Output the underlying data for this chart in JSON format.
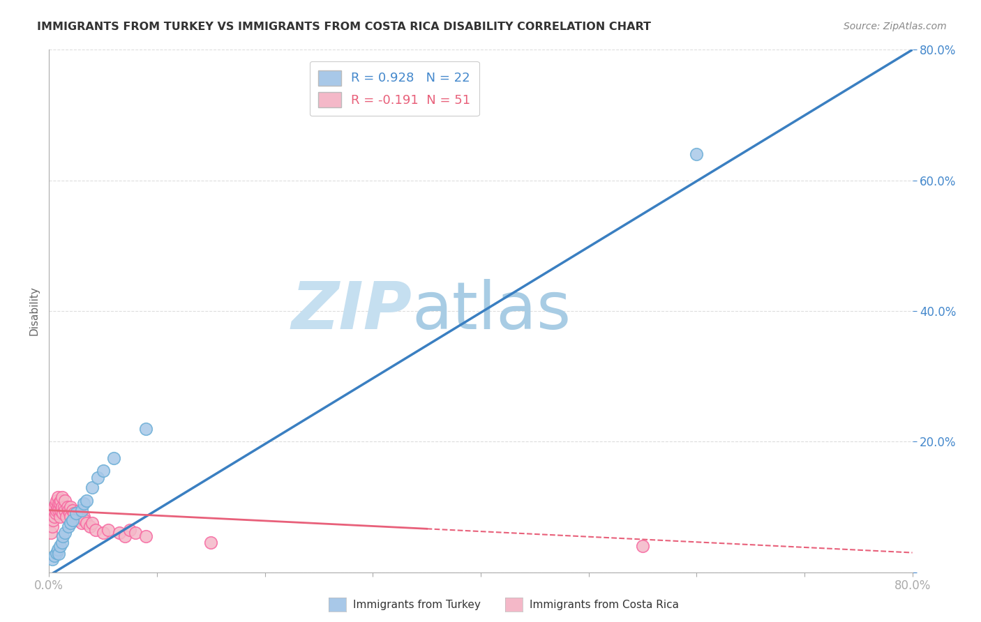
{
  "title": "IMMIGRANTS FROM TURKEY VS IMMIGRANTS FROM COSTA RICA DISABILITY CORRELATION CHART",
  "source": "Source: ZipAtlas.com",
  "ylabel": "Disability",
  "xlim": [
    0,
    0.8
  ],
  "ylim": [
    0,
    0.8
  ],
  "turkey_color": "#a8c8e8",
  "turkey_edge_color": "#6baed6",
  "costa_rica_color": "#f4b8c8",
  "costa_rica_edge_color": "#f768a1",
  "turkey_line_color": "#3a7fc1",
  "costa_rica_line_color": "#e8607a",
  "R_turkey": 0.928,
  "N_turkey": 22,
  "R_costa_rica": -0.191,
  "N_costa_rica": 51,
  "turkey_points_x": [
    0.003,
    0.005,
    0.007,
    0.008,
    0.009,
    0.01,
    0.012,
    0.013,
    0.015,
    0.018,
    0.02,
    0.022,
    0.025,
    0.03,
    0.032,
    0.035,
    0.04,
    0.045,
    0.05,
    0.06,
    0.09,
    0.6
  ],
  "turkey_points_y": [
    0.02,
    0.025,
    0.03,
    0.035,
    0.028,
    0.04,
    0.045,
    0.055,
    0.06,
    0.07,
    0.075,
    0.08,
    0.09,
    0.095,
    0.105,
    0.11,
    0.13,
    0.145,
    0.155,
    0.175,
    0.22,
    0.64
  ],
  "costa_rica_points_x": [
    0.002,
    0.003,
    0.004,
    0.004,
    0.005,
    0.005,
    0.006,
    0.006,
    0.007,
    0.007,
    0.008,
    0.008,
    0.009,
    0.009,
    0.01,
    0.01,
    0.011,
    0.011,
    0.012,
    0.012,
    0.013,
    0.014,
    0.015,
    0.015,
    0.016,
    0.017,
    0.018,
    0.019,
    0.02,
    0.02,
    0.022,
    0.023,
    0.025,
    0.027,
    0.028,
    0.03,
    0.032,
    0.033,
    0.035,
    0.038,
    0.04,
    0.043,
    0.05,
    0.055,
    0.065,
    0.07,
    0.075,
    0.08,
    0.09,
    0.15,
    0.55
  ],
  "costa_rica_points_y": [
    0.06,
    0.07,
    0.08,
    0.095,
    0.085,
    0.1,
    0.09,
    0.105,
    0.095,
    0.11,
    0.1,
    0.115,
    0.105,
    0.095,
    0.085,
    0.105,
    0.095,
    0.11,
    0.1,
    0.115,
    0.09,
    0.1,
    0.095,
    0.11,
    0.085,
    0.1,
    0.095,
    0.09,
    0.085,
    0.1,
    0.095,
    0.09,
    0.08,
    0.085,
    0.095,
    0.075,
    0.085,
    0.08,
    0.075,
    0.07,
    0.075,
    0.065,
    0.06,
    0.065,
    0.06,
    0.055,
    0.065,
    0.06,
    0.055,
    0.045,
    0.04
  ],
  "background_color": "#ffffff",
  "grid_color": "#dddddd",
  "watermark_zip": "ZIP",
  "watermark_atlas": "atlas",
  "watermark_color": "#d0e8f5"
}
